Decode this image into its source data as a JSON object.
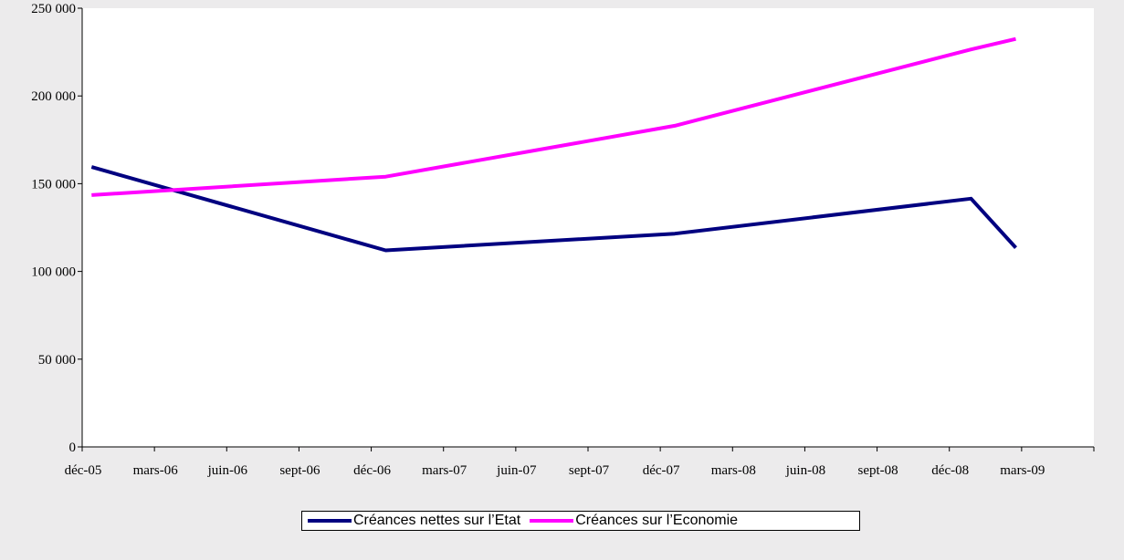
{
  "chart_data": {
    "type": "line",
    "title": "",
    "xlabel": "",
    "ylabel": "",
    "ylim": [
      0,
      250000
    ],
    "y_ticks": [
      0,
      50000,
      100000,
      150000,
      200000,
      250000
    ],
    "y_tick_labels": [
      "0",
      "50 000",
      "100 000",
      "150 000",
      "200 000",
      "250 000"
    ],
    "categories": [
      "déc-05",
      "mars-06",
      "juin-06",
      "sept-06",
      "déc-06",
      "mars-07",
      "juin-07",
      "sept-07",
      "déc-07",
      "mars-08",
      "juin-08",
      "sept-08",
      "déc-08",
      "mars-09"
    ],
    "series": [
      {
        "name": "Créances nettes sur l’Etat",
        "color": "#000080",
        "x": [
          0,
          4,
          8,
          12,
          13
        ],
        "values": [
          159500,
          112000,
          121500,
          141500,
          113500
        ]
      },
      {
        "name": "Créances sur l’Economie",
        "color": "#ff00ff",
        "x": [
          0,
          4,
          8,
          12,
          13
        ],
        "values": [
          143500,
          154000,
          183000,
          226500,
          232500
        ]
      }
    ],
    "grid": false,
    "legend_position": "bottom"
  }
}
